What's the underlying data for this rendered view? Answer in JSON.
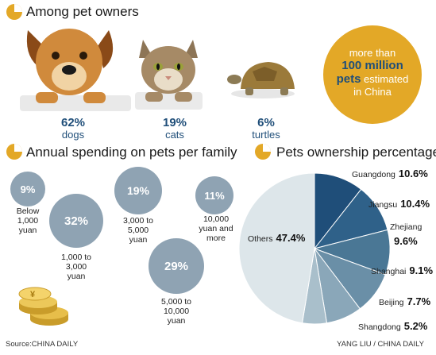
{
  "headings": {
    "owners": "Among pet owners",
    "spending": "Annual spending on pets per family",
    "ownership": "Pets ownership percentage"
  },
  "pets": [
    {
      "pct": "62%",
      "label": "dogs"
    },
    {
      "pct": "19%",
      "label": "cats"
    },
    {
      "pct": "6%",
      "label": "turtles"
    }
  ],
  "callout": {
    "line1": "more than",
    "line2": "100 million",
    "line3a": "pets",
    "line3b": " estimated",
    "line4": "in China"
  },
  "spending": [
    {
      "pct": "9%",
      "label": "Below\n1,000\nyuan"
    },
    {
      "pct": "32%",
      "label": "1,000 to\n3,000\nyuan"
    },
    {
      "pct": "19%",
      "label": "3,000 to\n5,000\nyuan"
    },
    {
      "pct": "29%",
      "label": "5,000 to\n10,000\nyuan"
    },
    {
      "pct": "11%",
      "label": "10,000\nyuan and\nmore"
    }
  ],
  "footer": {
    "source": "Source:CHINA DAILY",
    "credit": "YANG LIU / CHINA DAILY"
  },
  "colors": {
    "callout": "#e3a827",
    "bubble": "#8fa3b3",
    "others": "#dde6ea"
  },
  "chart_data": {
    "type": "pie",
    "title": "Pets ownership percentage",
    "categories": [
      "Guangdong",
      "Jiangsu",
      "Zhejiang",
      "Shanghai",
      "Beijing",
      "Shangdong",
      "Others"
    ],
    "values": [
      10.6,
      10.4,
      9.6,
      9.1,
      7.7,
      5.2,
      47.4
    ],
    "labels": [
      "10.6%",
      "10.4%",
      "9.6%",
      "9.1%",
      "7.7%",
      "5.2%",
      "47.4%"
    ],
    "colors": [
      "#1f4e79",
      "#2f6189",
      "#4a7795",
      "#6a8fa7",
      "#8aa7b9",
      "#a9bfcb",
      "#dde6ea"
    ]
  }
}
